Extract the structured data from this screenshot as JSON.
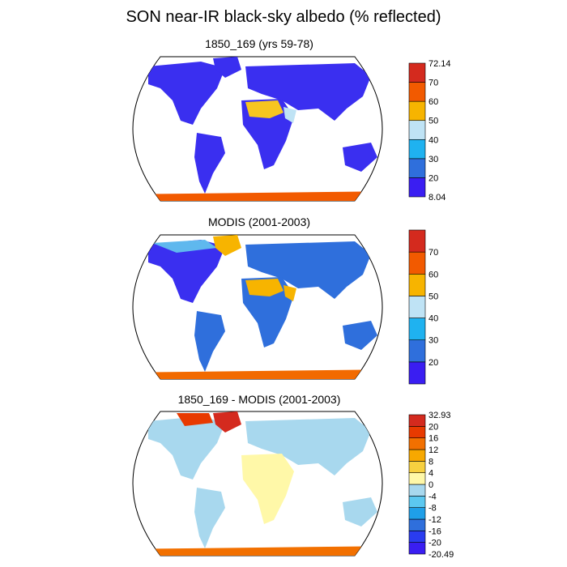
{
  "title": "SON near-IR black-sky albedo (% reflected)",
  "panels": [
    {
      "subtitle": "1850_169 (yrs 59-78)",
      "colorbar": {
        "colors": [
          "#3a1ef2",
          "#2f6fdc",
          "#1fb2f0",
          "#bfe3f5",
          "#f7b400",
          "#f25a00",
          "#d42a1e"
        ],
        "labels": [
          "8.04",
          "20",
          "30",
          "40",
          "50",
          "60",
          "70",
          "72.14"
        ]
      }
    },
    {
      "subtitle": "MODIS (2001-2003)",
      "colorbar": {
        "colors": [
          "#3a1ef2",
          "#2f6fdc",
          "#1fb2f0",
          "#bfe3f5",
          "#f7b400",
          "#f25a00",
          "#d42a1e"
        ],
        "labels": [
          "",
          "20",
          "30",
          "40",
          "50",
          "60",
          "70",
          ""
        ]
      }
    },
    {
      "subtitle": "1850_169 - MODIS (2001-2003)",
      "colorbar": {
        "colors": [
          "#3a1ef2",
          "#2a3cf0",
          "#2f6fdc",
          "#1f9fe8",
          "#5cc8f0",
          "#a8d8ee",
          "#fff8a8",
          "#f7d040",
          "#f7a800",
          "#f27000",
          "#e83a00",
          "#d42a1e"
        ],
        "labels": [
          "-20.49",
          "-20",
          "-16",
          "-12",
          "-8",
          "-4",
          "0",
          "4",
          "8",
          "12",
          "16",
          "20",
          "32.93"
        ]
      }
    }
  ]
}
